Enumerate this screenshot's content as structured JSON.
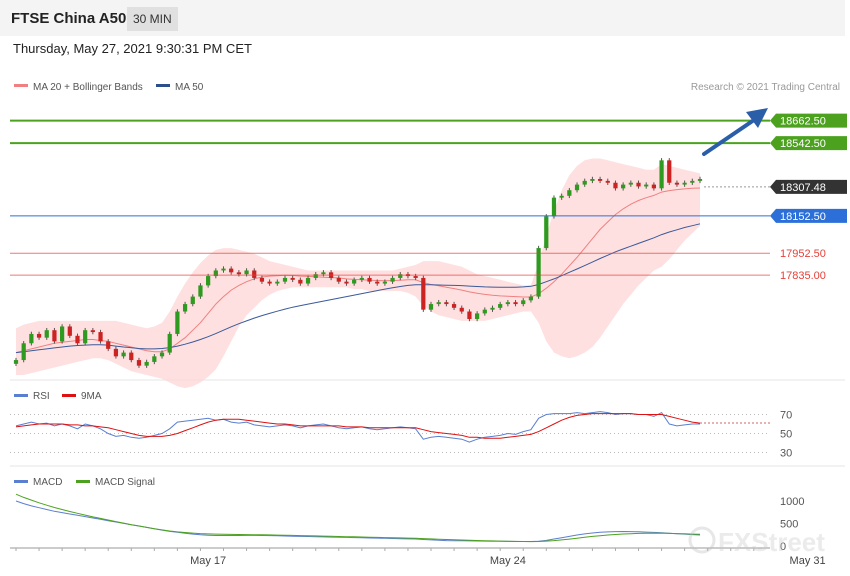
{
  "header": {
    "title": "FTSE China A50",
    "timeframe": "30 MIN"
  },
  "date": "Thursday, May 27, 2021 9:30:31 PM CET",
  "legend": {
    "ma20": "MA 20 + Bollinger Bands",
    "ma50": "MA 50"
  },
  "credit": "Research © 2021 Trading Central",
  "watermark": "FXStreet",
  "colors": {
    "resistance": "#4ca21f",
    "support_blue": "#2c6fd8",
    "support_red": "#e8403a",
    "candle_up": "#2e9a1f",
    "candle_down": "#cc2222",
    "ma20": "#f08080",
    "ma50": "#3a5a9a",
    "band": "#ffd6d6",
    "rsi": "#5b7fd0",
    "rsi_ma": "#dd1111",
    "macd": "#5b7fd0",
    "macd_signal": "#4ca21f",
    "arrow": "#2a5ea8"
  },
  "chart_data": [
    {
      "type": "candlestick",
      "title": "",
      "xlabel": "",
      "ylabel": "",
      "ylim": [
        17300,
        18800
      ],
      "x_ticks": [
        "May 17",
        "May 24",
        "May 31"
      ],
      "current_price": 18307.48,
      "levels": [
        {
          "name": "R2",
          "value": 18662.5,
          "label": "18662.50",
          "style": "resistance"
        },
        {
          "name": "R1",
          "value": 18542.5,
          "label": "18542.50",
          "style": "resistance"
        },
        {
          "name": "last",
          "value": 18307.48,
          "label": "18307.48",
          "style": "last"
        },
        {
          "name": "S1",
          "value": 18152.5,
          "label": "18152.50",
          "style": "support_blue"
        },
        {
          "name": "S2",
          "value": 17952.5,
          "label": "17952.50",
          "style": "support_red"
        },
        {
          "name": "S3",
          "value": 17835.0,
          "label": "17835.00",
          "style": "support_red"
        }
      ],
      "close": [
        17380,
        17470,
        17520,
        17500,
        17540,
        17480,
        17560,
        17510,
        17470,
        17540,
        17530,
        17480,
        17440,
        17400,
        17420,
        17380,
        17350,
        17370,
        17400,
        17420,
        17520,
        17640,
        17680,
        17720,
        17780,
        17830,
        17860,
        17870,
        17850,
        17840,
        17860,
        17820,
        17800,
        17790,
        17800,
        17820,
        17810,
        17790,
        17820,
        17840,
        17850,
        17820,
        17800,
        17790,
        17810,
        17820,
        17800,
        17790,
        17800,
        17820,
        17840,
        17830,
        17820,
        17650,
        17680,
        17690,
        17680,
        17660,
        17640,
        17600,
        17630,
        17650,
        17660,
        17680,
        17690,
        17680,
        17700,
        17720,
        17980,
        18150,
        18250,
        18260,
        18290,
        18320,
        18340,
        18350,
        18340,
        18330,
        18300,
        18320,
        18330,
        18310,
        18320,
        18300,
        18450,
        18330,
        18320,
        18330,
        18340,
        18350
      ],
      "series": [
        {
          "name": "MA 20",
          "values": [
            17420,
            17430,
            17440,
            17450,
            17460,
            17470,
            17475,
            17480,
            17485,
            17490,
            17490,
            17485,
            17480,
            17470,
            17460,
            17450,
            17440,
            17430,
            17425,
            17425,
            17440,
            17470,
            17500,
            17540,
            17580,
            17630,
            17680,
            17720,
            17755,
            17780,
            17800,
            17815,
            17825,
            17830,
            17832,
            17834,
            17833,
            17830,
            17828,
            17826,
            17824,
            17822,
            17820,
            17815,
            17812,
            17810,
            17808,
            17806,
            17805,
            17806,
            17808,
            17810,
            17810,
            17795,
            17785,
            17778,
            17770,
            17763,
            17755,
            17745,
            17738,
            17732,
            17727,
            17724,
            17722,
            17720,
            17718,
            17718,
            17735,
            17765,
            17800,
            17840,
            17885,
            17930,
            17980,
            18030,
            18080,
            18120,
            18160,
            18190,
            18215,
            18235,
            18250,
            18262,
            18280,
            18288,
            18293,
            18297,
            18300,
            18302
          ]
        },
        {
          "name": "MA 50",
          "values": [
            17420,
            17425,
            17430,
            17435,
            17440,
            17445,
            17450,
            17455,
            17458,
            17460,
            17462,
            17462,
            17460,
            17455,
            17450,
            17446,
            17442,
            17440,
            17440,
            17442,
            17447,
            17455,
            17465,
            17477,
            17490,
            17505,
            17522,
            17540,
            17558,
            17575,
            17590,
            17605,
            17618,
            17630,
            17642,
            17653,
            17663,
            17672,
            17680,
            17688,
            17696,
            17704,
            17712,
            17720,
            17728,
            17736,
            17744,
            17752,
            17760,
            17767,
            17774,
            17780,
            17783,
            17783,
            17783,
            17782,
            17781,
            17780,
            17779,
            17776,
            17774,
            17772,
            17771,
            17770,
            17770,
            17770,
            17772,
            17775,
            17785,
            17800,
            17815,
            17832,
            17850,
            17868,
            17886,
            17905,
            17924,
            17942,
            17960,
            17975,
            17990,
            18005,
            18020,
            18035,
            18052,
            18066,
            18078,
            18090,
            18100,
            18110
          ]
        },
        {
          "name": "BB Upper",
          "values": [
            17550,
            17570,
            17580,
            17590,
            17590,
            17590,
            17590,
            17590,
            17590,
            17590,
            17590,
            17590,
            17590,
            17590,
            17580,
            17570,
            17560,
            17550,
            17560,
            17580,
            17640,
            17720,
            17790,
            17850,
            17900,
            17940,
            17970,
            17980,
            17980,
            17970,
            17960,
            17950,
            17930,
            17910,
            17900,
            17890,
            17880,
            17870,
            17860,
            17860,
            17860,
            17860,
            17860,
            17860,
            17860,
            17860,
            17860,
            17860,
            17860,
            17860,
            17870,
            17880,
            17890,
            17910,
            17910,
            17910,
            17900,
            17890,
            17880,
            17860,
            17840,
            17830,
            17820,
            17810,
            17800,
            17790,
            17780,
            17780,
            17900,
            18050,
            18180,
            18290,
            18370,
            18420,
            18450,
            18460,
            18460,
            18450,
            18440,
            18430,
            18420,
            18410,
            18400,
            18400,
            18430,
            18420,
            18410,
            18400,
            18390,
            18380
          ]
        },
        {
          "name": "BB Lower",
          "values": [
            17300,
            17300,
            17310,
            17320,
            17330,
            17340,
            17350,
            17360,
            17370,
            17380,
            17390,
            17390,
            17380,
            17360,
            17340,
            17320,
            17310,
            17300,
            17290,
            17280,
            17260,
            17240,
            17230,
            17240,
            17260,
            17290,
            17330,
            17400,
            17480,
            17560,
            17620,
            17660,
            17700,
            17730,
            17750,
            17760,
            17770,
            17770,
            17770,
            17770,
            17770,
            17770,
            17770,
            17770,
            17760,
            17760,
            17750,
            17750,
            17750,
            17750,
            17750,
            17740,
            17720,
            17670,
            17640,
            17620,
            17610,
            17600,
            17590,
            17590,
            17590,
            17590,
            17600,
            17610,
            17620,
            17630,
            17640,
            17640,
            17580,
            17480,
            17420,
            17400,
            17390,
            17400,
            17420,
            17450,
            17500,
            17560,
            17620,
            17680,
            17730,
            17780,
            17820,
            17860,
            17880,
            17920,
            17970,
            18020,
            18060,
            18100
          ]
        }
      ]
    },
    {
      "type": "line",
      "name": "RSI",
      "title": "",
      "xlabel": "",
      "ylabel": "",
      "ylim": [
        20,
        80
      ],
      "y_ticks": [
        70,
        50,
        30
      ],
      "series": [
        {
          "name": "RSI",
          "values": [
            58,
            60,
            62,
            60,
            61,
            58,
            60,
            58,
            55,
            60,
            58,
            55,
            50,
            47,
            48,
            46,
            45,
            46,
            48,
            50,
            55,
            62,
            63,
            64,
            65,
            66,
            64,
            65,
            62,
            61,
            62,
            59,
            58,
            57,
            58,
            59,
            58,
            56,
            58,
            59,
            60,
            58,
            56,
            55,
            56,
            57,
            55,
            54,
            55,
            56,
            57,
            56,
            55,
            44,
            46,
            47,
            46,
            45,
            44,
            41,
            44,
            46,
            47,
            48,
            50,
            49,
            52,
            54,
            66,
            70,
            71,
            71,
            71,
            72,
            71,
            72,
            73,
            72,
            70,
            71,
            71,
            70,
            70,
            68,
            72,
            60,
            58,
            59,
            60,
            60
          ]
        },
        {
          "name": "9MA",
          "values": [
            57,
            58,
            59,
            60,
            60,
            60,
            60,
            59,
            59,
            58,
            58,
            57,
            56,
            54,
            52,
            50,
            48,
            47,
            47,
            47,
            48,
            50,
            53,
            56,
            59,
            62,
            64,
            65,
            65,
            65,
            64,
            63,
            62,
            61,
            60,
            60,
            59,
            58,
            58,
            58,
            58,
            58,
            58,
            57,
            57,
            57,
            56,
            56,
            56,
            56,
            56,
            56,
            56,
            54,
            52,
            51,
            50,
            49,
            48,
            46,
            46,
            45,
            45,
            45,
            46,
            47,
            48,
            49,
            52,
            56,
            60,
            64,
            67,
            69,
            70,
            71,
            71,
            71,
            71,
            71,
            71,
            70,
            70,
            70,
            70,
            68,
            66,
            64,
            62,
            61
          ]
        }
      ]
    },
    {
      "type": "line",
      "name": "MACD",
      "title": "",
      "xlabel": "",
      "ylabel": "",
      "ylim": [
        -50,
        1200
      ],
      "y_ticks": [
        1000,
        500,
        0
      ],
      "series": [
        {
          "name": "MACD",
          "values": [
            1000,
            940,
            890,
            850,
            810,
            770,
            740,
            710,
            680,
            650,
            620,
            590,
            560,
            530,
            500,
            470,
            440,
            410,
            380,
            350,
            320,
            300,
            280,
            260,
            245,
            235,
            230,
            228,
            228,
            230,
            232,
            232,
            230,
            226,
            222,
            218,
            214,
            210,
            206,
            202,
            198,
            194,
            190,
            186,
            182,
            178,
            174,
            170,
            166,
            162,
            158,
            154,
            150,
            140,
            130,
            122,
            116,
            112,
            110,
            108,
            106,
            104,
            102,
            100,
            98,
            96,
            95,
            94,
            100,
            120,
            150,
            180,
            210,
            240,
            265,
            285,
            300,
            310,
            315,
            318,
            316,
            312,
            306,
            298,
            290,
            280,
            270,
            260,
            250,
            240
          ]
        },
        {
          "name": "MACD Signal",
          "values": [
            1150,
            1080,
            1020,
            960,
            905,
            855,
            810,
            765,
            725,
            685,
            645,
            610,
            575,
            540,
            505,
            470,
            440,
            410,
            380,
            355,
            330,
            310,
            295,
            282,
            272,
            265,
            260,
            256,
            253,
            251,
            249,
            247,
            245,
            242,
            239,
            235,
            231,
            227,
            223,
            219,
            215,
            211,
            207,
            203,
            199,
            195,
            191,
            187,
            183,
            179,
            175,
            171,
            167,
            160,
            153,
            146,
            140,
            134,
            128,
            122,
            117,
            112,
            108,
            104,
            100,
            97,
            95,
            93,
            95,
            103,
            115,
            130,
            148,
            168,
            188,
            208,
            225,
            240,
            252,
            262,
            270,
            275,
            278,
            279,
            278,
            276,
            272,
            267,
            261,
            255
          ]
        }
      ]
    }
  ]
}
